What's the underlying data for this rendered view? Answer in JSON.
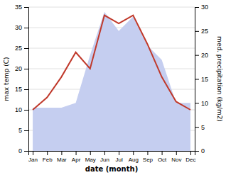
{
  "chart_data": {
    "type": "line",
    "xlabel": "date (month)",
    "ylabel": "max temp (C)",
    "y2label": "med. precipitation (kg/m2)",
    "categories": [
      "Jan",
      "Feb",
      "Mar",
      "Apr",
      "May",
      "Jun",
      "Jul",
      "Aug",
      "Sep",
      "Oct",
      "Nov",
      "Dec"
    ],
    "series": [
      {
        "type": "area",
        "axis": "y2",
        "color": "#c5cef0",
        "values": [
          9,
          9,
          9,
          10,
          20,
          29,
          25,
          28,
          22,
          19,
          10,
          10
        ]
      },
      {
        "type": "line",
        "color": "#c0392b",
        "values": [
          10,
          13,
          18,
          24,
          20,
          33,
          31,
          33,
          26,
          18,
          12,
          10
        ]
      }
    ],
    "ylim": [
      0,
      35
    ],
    "yticks": [
      0,
      5,
      10,
      15,
      20,
      25,
      30,
      35
    ],
    "y2lim": [
      0,
      30
    ],
    "y2ticks": [
      0,
      5,
      10,
      15,
      20,
      25,
      30
    ],
    "grid": true
  }
}
